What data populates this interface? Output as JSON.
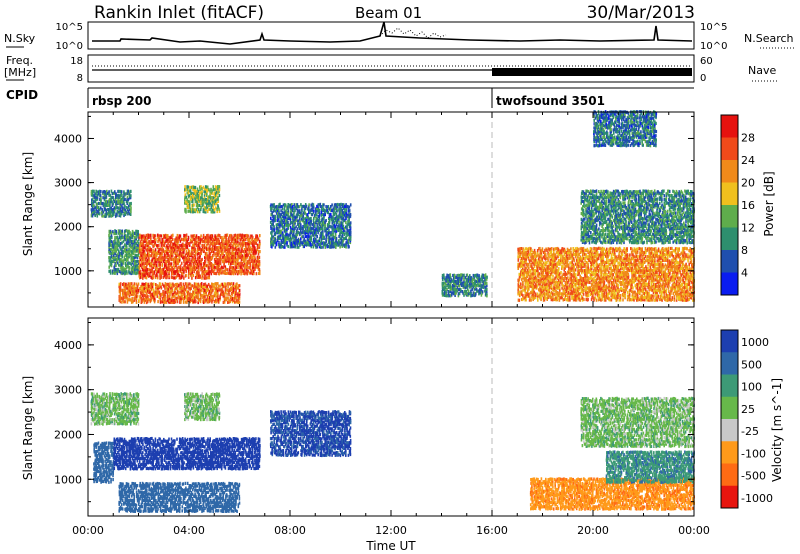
{
  "header": {
    "station": "Rankin Inlet (fitACF)",
    "beam": "Beam 01",
    "date": "30/Mar/2013"
  },
  "top_panels": {
    "nsky_label": "N.Sky",
    "nsky_ticks": [
      "10^5",
      "10^0"
    ],
    "nsearch_label": "N.Search",
    "freq_label_line1": "Freq.",
    "freq_label_line2": "[MHz]",
    "freq_ticks": [
      "18",
      "8"
    ],
    "nave_label": "Nave",
    "nave_ticks": [
      "60",
      "0"
    ],
    "cpid_label": "CPID",
    "modes": [
      {
        "name": "rbsp 200",
        "start_hour": 0.0
      },
      {
        "name": "twofsound 3501",
        "start_hour": 16.0
      }
    ]
  },
  "colors": {
    "power_scale": [
      "#0a1cf0",
      "#1f4fae",
      "#2e8f6e",
      "#5fad4c",
      "#f0c01e",
      "#f08a1a",
      "#f04a1a",
      "#e6120f"
    ],
    "velocity_scale": [
      "#1d3fb0",
      "#2f68a8",
      "#3d9a76",
      "#67b84a",
      "#c8c8c8",
      "#ff9a1a",
      "#ff6b14",
      "#e8150f"
    ]
  },
  "chart_data": [
    {
      "type": "heatmap",
      "name": "power",
      "ylabel": "Slant Range [km]",
      "ylim": [
        180,
        4600
      ],
      "yticks": [
        "1000",
        "2000",
        "3000",
        "4000"
      ],
      "xlim": [
        0,
        24
      ],
      "xticks": [
        "00:00",
        "04:00",
        "08:00",
        "12:00",
        "16:00",
        "20:00",
        "00:00"
      ],
      "colorbar": {
        "label": "Power [dB]",
        "ticks": [
          "4",
          "8",
          "12",
          "16",
          "20",
          "24",
          "28"
        ],
        "range": [
          0,
          32
        ]
      },
      "regions": [
        {
          "t0": 0.1,
          "t1": 1.7,
          "r0": 2200,
          "r1": 2800,
          "value": 9
        },
        {
          "t0": 0.8,
          "t1": 2.0,
          "r0": 900,
          "r1": 1900,
          "value": 11
        },
        {
          "t0": 2.0,
          "t1": 4.8,
          "r0": 800,
          "r1": 1800,
          "value": 26
        },
        {
          "t0": 4.8,
          "t1": 6.8,
          "r0": 900,
          "r1": 1800,
          "value": 25
        },
        {
          "t0": 1.2,
          "t1": 6.0,
          "r0": 250,
          "r1": 700,
          "value": 24
        },
        {
          "t0": 3.8,
          "t1": 5.2,
          "r0": 2300,
          "r1": 2900,
          "value": 14
        },
        {
          "t0": 7.2,
          "t1": 10.4,
          "r0": 1500,
          "r1": 2500,
          "value": 8
        },
        {
          "t0": 14.0,
          "t1": 15.8,
          "r0": 400,
          "r1": 900,
          "value": 9
        },
        {
          "t0": 17.0,
          "t1": 24.0,
          "r0": 300,
          "r1": 1500,
          "value": 22
        },
        {
          "t0": 19.5,
          "t1": 24.0,
          "r0": 1600,
          "r1": 2800,
          "value": 10
        },
        {
          "t0": 20.0,
          "t1": 22.5,
          "r0": 3800,
          "r1": 4600,
          "value": 8
        }
      ]
    },
    {
      "type": "heatmap",
      "name": "velocity",
      "ylabel": "Slant Range [km]",
      "xlabel": "Time UT",
      "ylim": [
        180,
        4600
      ],
      "yticks": [
        "1000",
        "2000",
        "3000",
        "4000"
      ],
      "xlim": [
        0,
        24
      ],
      "xticks": [
        "00:00",
        "04:00",
        "08:00",
        "12:00",
        "16:00",
        "20:00",
        "00:00"
      ],
      "colorbar": {
        "label": "Velocity [m s^-1]",
        "ticks": [
          "1000",
          "500",
          "100",
          "25",
          "-25",
          "-100",
          "-500",
          "-1000"
        ]
      },
      "regions": [
        {
          "t0": 0.1,
          "t1": 2.0,
          "r0": 2200,
          "r1": 2900,
          "value": 0
        },
        {
          "t0": 0.2,
          "t1": 1.0,
          "r0": 900,
          "r1": 1800,
          "value": 300
        },
        {
          "t0": 1.0,
          "t1": 6.8,
          "r0": 1200,
          "r1": 1900,
          "value": 1000
        },
        {
          "t0": 1.2,
          "t1": 6.0,
          "r0": 250,
          "r1": 900,
          "value": 200
        },
        {
          "t0": 3.8,
          "t1": 5.2,
          "r0": 2300,
          "r1": 2900,
          "value": 0
        },
        {
          "t0": 7.2,
          "t1": 10.4,
          "r0": 1500,
          "r1": 2500,
          "value": 600
        },
        {
          "t0": 17.5,
          "t1": 24.0,
          "r0": 300,
          "r1": 1000,
          "value": -400
        },
        {
          "t0": 20.5,
          "t1": 24.0,
          "r0": 900,
          "r1": 1600,
          "value": 80
        },
        {
          "t0": 19.5,
          "t1": 24.0,
          "r0": 1700,
          "r1": 2800,
          "value": 0
        }
      ]
    }
  ]
}
